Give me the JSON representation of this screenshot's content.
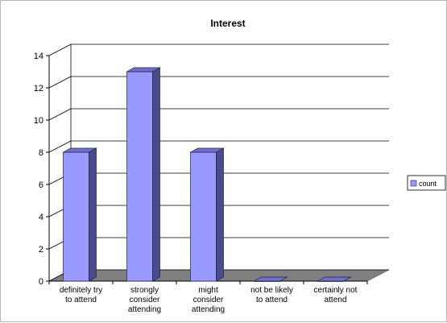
{
  "chart_data": {
    "type": "bar",
    "title": "Interest",
    "categories": [
      [
        "definitely try",
        "to attend"
      ],
      [
        "strongly",
        "consider",
        "attending"
      ],
      [
        "might",
        "consider",
        "attending"
      ],
      [
        "not be likely",
        "to attend"
      ],
      [
        "certainly not",
        "attend"
      ]
    ],
    "series": [
      {
        "name": "count",
        "values": [
          8,
          13,
          8,
          0,
          0
        ]
      }
    ],
    "ylim": [
      0,
      14
    ],
    "yticks": [
      "0",
      "2",
      "4",
      "6",
      "8",
      "10",
      "12",
      "14"
    ],
    "grid": true,
    "legend_position": "right",
    "style": "3d-column",
    "colors": {
      "bar_front": "#9999ff",
      "bar_side": "#4a4a8c",
      "bar_top": "#7070cc",
      "floor": "#7f7f7f",
      "wall": "#ffffff",
      "gridline": "#000000"
    }
  }
}
